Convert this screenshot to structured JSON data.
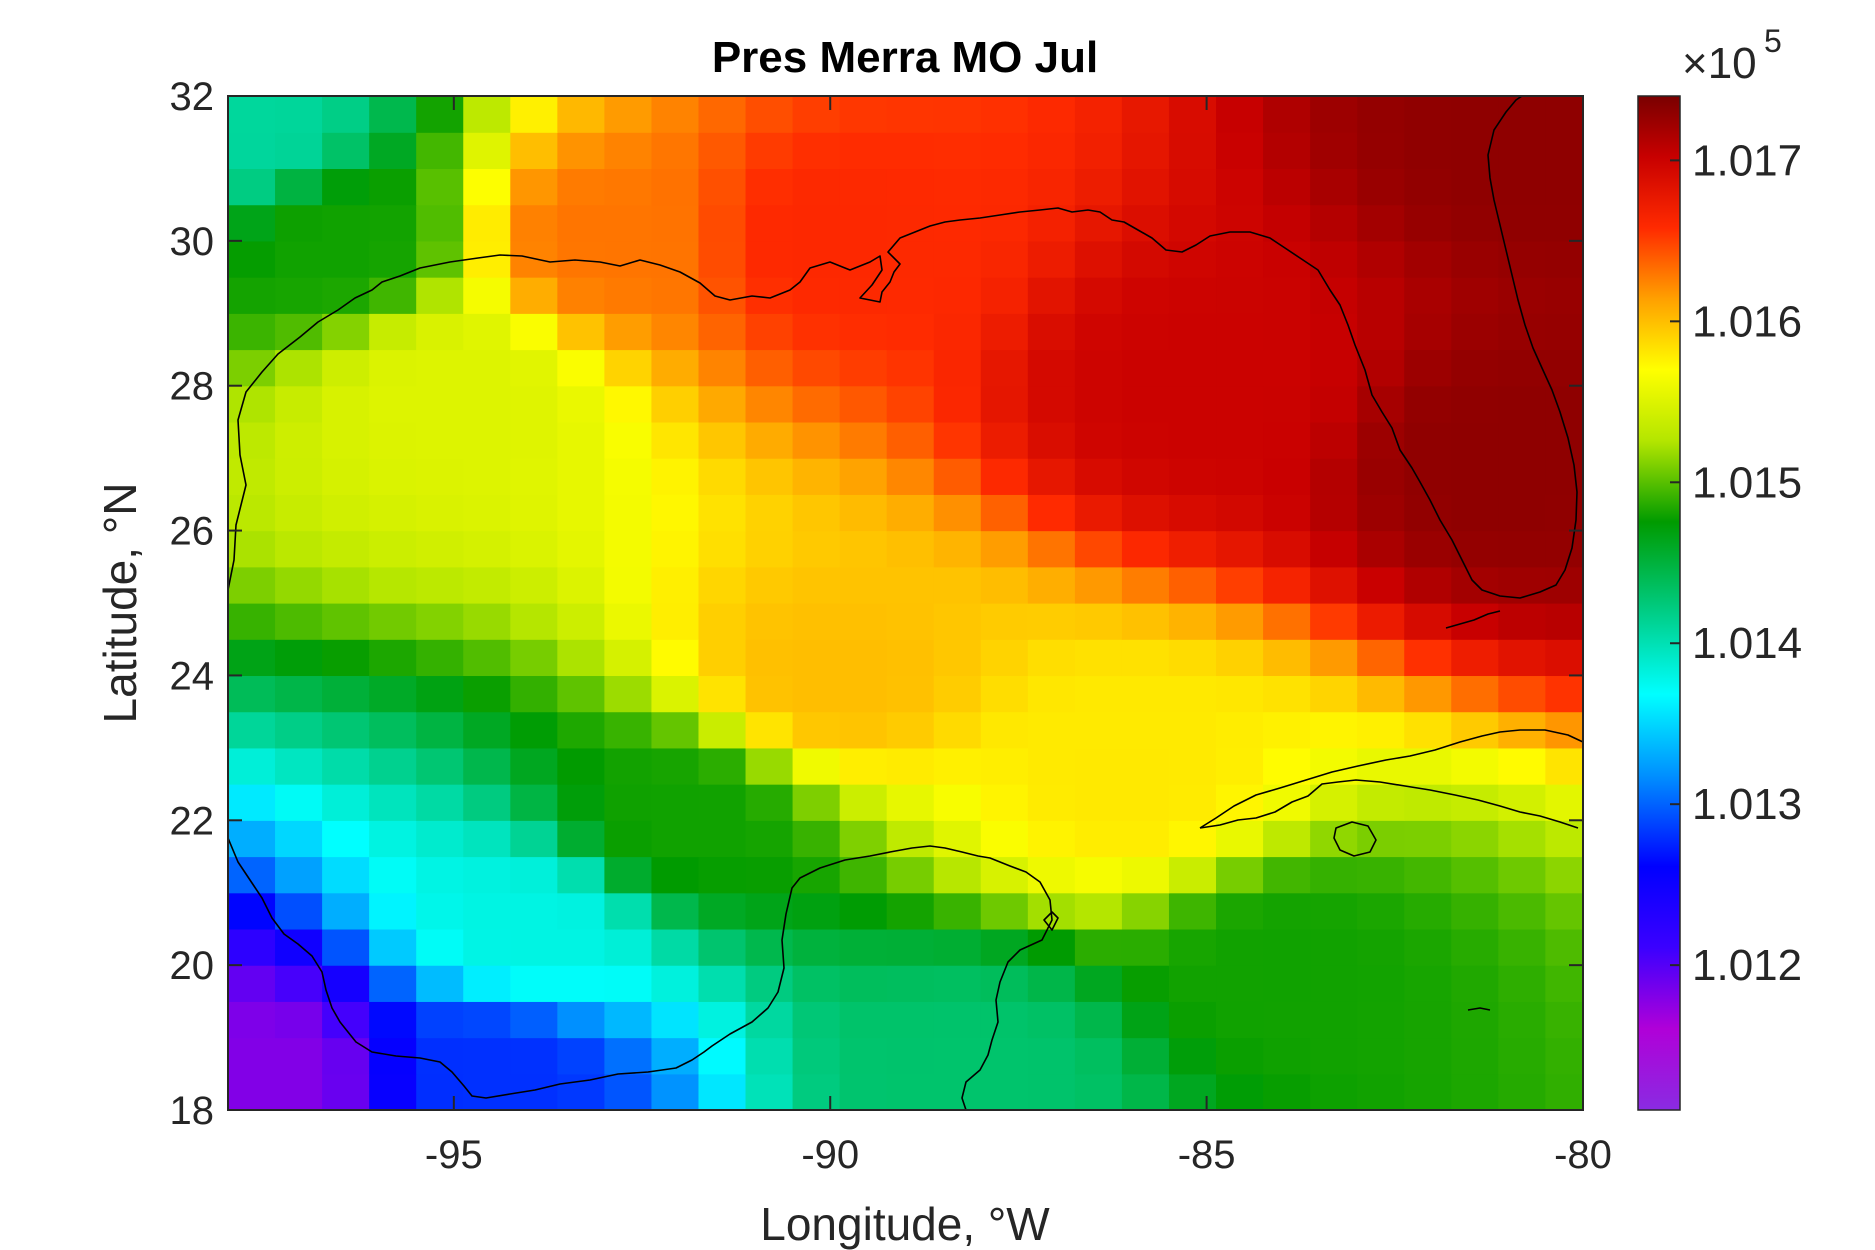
{
  "chart_data": {
    "type": "heatmap",
    "title": "Pres Merra MO Jul",
    "xlabel": "Longitude, °W",
    "ylabel": "Latitude, °N",
    "xlim": [
      -98,
      -80
    ],
    "ylim": [
      18,
      32
    ],
    "x_ticks": [
      -95,
      -90,
      -85,
      -80
    ],
    "x_tick_labels": [
      "-95",
      "-90",
      "-85",
      "-80"
    ],
    "y_ticks": [
      18,
      20,
      22,
      24,
      26,
      28,
      30,
      32
    ],
    "y_tick_labels": [
      "18",
      "20",
      "22",
      "24",
      "26",
      "28",
      "30",
      "32"
    ],
    "grid": false,
    "colormap": "jet-like (purple-blue-cyan-green-yellow-orange-red-dark red)",
    "colorbar": {
      "location": "right",
      "multiplier": "×10",
      "exponent": "5",
      "range": [
        1.0111,
        1.0174
      ],
      "ticks": [
        1.012,
        1.013,
        1.014,
        1.015,
        1.016,
        1.017
      ],
      "tick_labels": [
        "1.012",
        "1.013",
        "1.014",
        "1.015",
        "1.016",
        "1.017"
      ]
    },
    "z_units_note": "values shown ×10^5 (Pa)",
    "grid_resolution_deg": {
      "lon": 0.625,
      "lat": 0.5
    },
    "field_samples": [
      {
        "lon": -97.7,
        "lat": 31.5,
        "value": 1.0141
      },
      {
        "lon": -96.5,
        "lat": 30.0,
        "value": 1.0148
      },
      {
        "lon": -95.0,
        "lat": 28.0,
        "value": 1.0155
      },
      {
        "lon": -93.0,
        "lat": 30.0,
        "value": 1.0163
      },
      {
        "lon": -90.0,
        "lat": 30.0,
        "value": 1.0166
      },
      {
        "lon": -85.0,
        "lat": 28.0,
        "value": 1.017
      },
      {
        "lon": -81.0,
        "lat": 27.0,
        "value": 1.0173
      },
      {
        "lon": -80.5,
        "lat": 31.5,
        "value": 1.0173
      },
      {
        "lon": -90.0,
        "lat": 24.0,
        "value": 1.016
      },
      {
        "lon": -86.0,
        "lat": 22.5,
        "value": 1.0158
      },
      {
        "lon": -92.0,
        "lat": 22.0,
        "value": 1.0148
      },
      {
        "lon": -84.0,
        "lat": 20.0,
        "value": 1.0148
      },
      {
        "lon": -94.0,
        "lat": 20.5,
        "value": 1.0138
      },
      {
        "lon": -94.5,
        "lat": 18.5,
        "value": 1.0128
      },
      {
        "lon": -97.5,
        "lat": 18.5,
        "value": 1.0118
      },
      {
        "lon": -88.0,
        "lat": 18.5,
        "value": 1.0143
      }
    ]
  }
}
